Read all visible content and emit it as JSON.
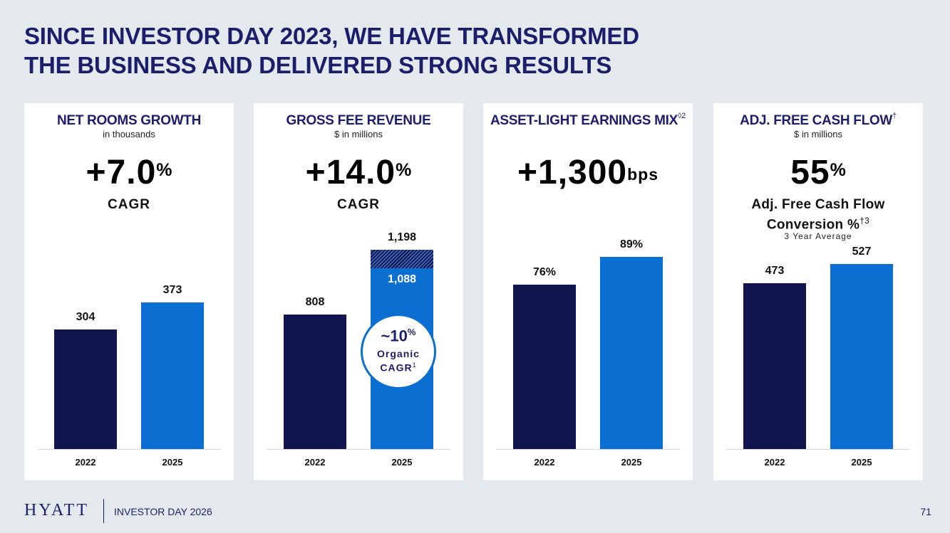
{
  "title_line1": "SINCE INVESTOR DAY 2023, WE HAVE TRANSFORMED",
  "title_line2": "THE BUSINESS AND DELIVERED STRONG RESULTS",
  "colors": {
    "dark": "#12164f",
    "blue": "#0a6fd1",
    "title": "#1b1e6b",
    "background": "#e4e9ee"
  },
  "footer": {
    "logo": "HYATT",
    "event": "INVESTOR DAY 2026",
    "page": "71"
  },
  "cards": [
    {
      "title": "NET ROOMS GROWTH",
      "title_sup": "",
      "subtitle": "in thousands",
      "metric_value": "+7.0",
      "metric_unit": "%",
      "metric_label": "CAGR",
      "values_text": [
        "304",
        "373"
      ]
    },
    {
      "title": "GROSS FEE REVENUE",
      "title_sup": "",
      "subtitle": "$ in millions",
      "metric_value": "+14.0",
      "metric_unit": "%",
      "metric_label": "CAGR",
      "values_text": [
        "808",
        "1,198"
      ],
      "inner_value_text": "1,088",
      "callout": {
        "value": "~10",
        "unit": "%",
        "line1": "Organic",
        "line2": "CAGR",
        "sup": "1"
      }
    },
    {
      "title": "ASSET-LIGHT EARNINGS MIX",
      "title_sup": "◊2",
      "subtitle": "",
      "metric_value": "+1,300",
      "metric_unit": "bps",
      "metric_label": "",
      "values_text": [
        "76%",
        "89%"
      ]
    },
    {
      "title": "ADJ. FREE CASH FLOW",
      "title_sup": "†",
      "subtitle": "$ in millions",
      "metric_value": "55",
      "metric_unit": "%",
      "metric_label": "",
      "desc_line1": "Adj. Free Cash Flow",
      "desc_line2": "Conversion %",
      "desc_sup": "†3",
      "note": "3 Year Average",
      "values_text": [
        "473",
        "527"
      ]
    }
  ],
  "chart_data": [
    {
      "type": "bar",
      "title": "NET ROOMS GROWTH",
      "categories": [
        "2022",
        "2025"
      ],
      "values": [
        304,
        373
      ],
      "unit": "thousands"
    },
    {
      "type": "bar",
      "title": "GROSS FEE REVENUE",
      "categories": [
        "2022",
        "2025"
      ],
      "values": [
        808,
        1198
      ],
      "stacked_base_2025": 1088,
      "unit": "$ in millions"
    },
    {
      "type": "bar",
      "title": "ASSET-LIGHT EARNINGS MIX",
      "categories": [
        "2022",
        "2025"
      ],
      "values": [
        76,
        89
      ],
      "unit": "%"
    },
    {
      "type": "bar",
      "title": "ADJ. FREE CASH FLOW",
      "categories": [
        "2022",
        "2025"
      ],
      "values": [
        473,
        527
      ],
      "unit": "$ in millions"
    }
  ]
}
